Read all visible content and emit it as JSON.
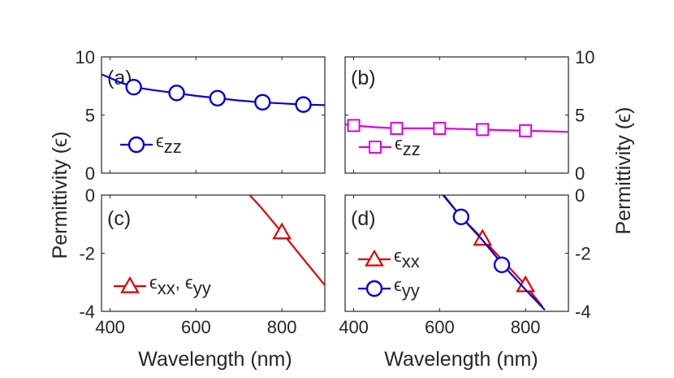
{
  "figure": {
    "ylabel_left": "Permittivity (ϵ)",
    "ylabel_right": "Permittivity (ϵ)",
    "xlabel": "Wavelength (nm)"
  },
  "chart_data": [
    {
      "type": "line",
      "panel": "(a)",
      "title": "",
      "xlabel": "",
      "ylabel": "",
      "xlim": [
        380,
        900
      ],
      "ylim": [
        0,
        10
      ],
      "xticks": [
        400,
        600,
        800
      ],
      "yticks": [
        0,
        5,
        10
      ],
      "ytick_labels": [
        "0",
        "5",
        "10"
      ],
      "legend_position": "middle-left",
      "series": [
        {
          "name": "ϵzz",
          "legend_symbol": "ϵ",
          "legend_sub": "zz",
          "color": "#0000e0",
          "marker": "circle",
          "x": [
            380,
            400,
            420,
            440,
            455,
            500,
            550,
            600,
            650,
            700,
            750,
            800,
            850,
            900
          ],
          "y": [
            8.5,
            8.2,
            7.85,
            7.6,
            7.4,
            7.15,
            6.9,
            6.65,
            6.45,
            6.25,
            6.1,
            6.0,
            5.9,
            5.85
          ],
          "marker_x": [
            455,
            555,
            650,
            755,
            850
          ],
          "marker_y": [
            7.4,
            6.9,
            6.45,
            6.1,
            5.9
          ]
        }
      ]
    },
    {
      "type": "line",
      "panel": "(b)",
      "title": "",
      "xlabel": "",
      "ylabel": "",
      "xlim": [
        380,
        900
      ],
      "ylim": [
        0,
        10
      ],
      "xticks": [
        400,
        600,
        800
      ],
      "yticks": [
        0,
        5,
        10
      ],
      "ytick_labels": [
        "0",
        "5",
        "10"
      ],
      "legend_position": "middle-left",
      "series": [
        {
          "name": "ϵzz",
          "legend_symbol": "ϵ",
          "legend_sub": "zz",
          "color": "#e000e0",
          "marker": "square",
          "x": [
            380,
            400,
            450,
            500,
            550,
            600,
            650,
            700,
            750,
            800,
            850,
            900
          ],
          "y": [
            4.2,
            4.1,
            3.95,
            3.85,
            3.85,
            3.85,
            3.8,
            3.75,
            3.7,
            3.65,
            3.6,
            3.55
          ],
          "marker_x": [
            400,
            500,
            600,
            700,
            800
          ],
          "marker_y": [
            4.1,
            3.85,
            3.85,
            3.75,
            3.65
          ]
        }
      ]
    },
    {
      "type": "line",
      "panel": "(c)",
      "title": "",
      "xlabel": "Wavelength (nm)",
      "ylabel": "",
      "xlim": [
        380,
        900
      ],
      "ylim": [
        -4,
        0
      ],
      "xticks": [
        400,
        600,
        800
      ],
      "yticks": [
        0,
        -2,
        -4
      ],
      "ytick_labels": [
        "0",
        "-2",
        "-4"
      ],
      "legend_position": "bottom-left",
      "series": [
        {
          "name": "ϵxx, ϵyy",
          "legend_symbol": "ϵ",
          "legend_sub": "xx",
          "legend_symbol2": "ϵ",
          "legend_sub2": "yy",
          "color": "#e00000",
          "marker": "triangle",
          "x": [
            725,
            750,
            800,
            850,
            900
          ],
          "y": [
            0,
            -0.4,
            -1.28,
            -2.2,
            -3.1
          ],
          "marker_x": [
            800
          ],
          "marker_y": [
            -1.28
          ]
        }
      ]
    },
    {
      "type": "line",
      "panel": "(d)",
      "title": "",
      "xlabel": "Wavelength (nm)",
      "ylabel": "",
      "xlim": [
        380,
        900
      ],
      "ylim": [
        -4,
        0
      ],
      "xticks": [
        400,
        600,
        800
      ],
      "yticks": [
        0,
        -2,
        -4
      ],
      "ytick_labels": [
        "0",
        "-2",
        "-4"
      ],
      "legend_position": "bottom-left",
      "series": [
        {
          "name": "ϵxx",
          "legend_symbol": "ϵ",
          "legend_sub": "xx",
          "color": "#e00000",
          "marker": "triangle",
          "x": [
            610,
            650,
            700,
            750,
            800,
            840
          ],
          "y": [
            0,
            -0.75,
            -1.5,
            -2.3,
            -3.1,
            -3.85
          ],
          "marker_x": [
            700,
            800
          ],
          "marker_y": [
            -1.5,
            -3.1
          ]
        },
        {
          "name": "ϵyy",
          "legend_symbol": "ϵ",
          "legend_sub": "yy",
          "color": "#0000e0",
          "marker": "circle",
          "x": [
            608,
            650,
            700,
            750,
            800,
            845
          ],
          "y": [
            0,
            -0.75,
            -1.55,
            -2.45,
            -3.25,
            -3.95
          ],
          "marker_x": [
            650,
            745
          ],
          "marker_y": [
            -0.75,
            -2.4
          ]
        }
      ]
    }
  ]
}
